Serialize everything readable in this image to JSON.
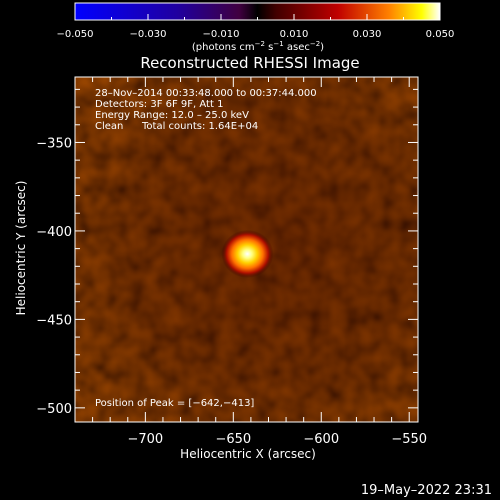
{
  "chart_data": {
    "type": "heatmap",
    "title": "Reconstructed RHESSI Image",
    "xlabel": "Heliocentric X (arcsec)",
    "ylabel": "Heliocentric Y (arcsec)",
    "xlim": [
      -740,
      -545
    ],
    "ylim": [
      -508,
      -313
    ],
    "x_ticks": [
      -700,
      -650,
      -600,
      -550
    ],
    "x_tick_labels": [
      "−700",
      "−650",
      "−600",
      "−550"
    ],
    "y_ticks": [
      -350,
      -400,
      -450,
      -500
    ],
    "y_tick_labels": [
      "−350",
      "−400",
      "−450",
      "−500"
    ],
    "colorbar": {
      "range": [
        -0.05,
        0.05
      ],
      "ticks": [
        -0.05,
        -0.03,
        -0.01,
        0.01,
        0.03,
        0.05
      ],
      "tick_labels": [
        "−0.050",
        "−0.030",
        "−0.010",
        "0.010",
        "0.030",
        "0.050"
      ],
      "units_prefix": "(photons cm",
      "units_exp1": "−2",
      "units_mid": " s",
      "units_exp2": "−1",
      "units_mid2": " asec",
      "units_exp3": "−2",
      "units_suffix": ")"
    },
    "annotations": {
      "time_range": "28–Nov–2014 00:33:48.000 to 00:37:44.000",
      "detectors": "Detectors: 3F 6F 9F, Att 1",
      "energy": "Energy Range: 12.0 – 25.0 keV",
      "clean": "Clean",
      "counts": "Total counts: 1.64E+04",
      "peak": "Position of Peak = [−642,−413]"
    },
    "source_peak": {
      "x": -642,
      "y": -413
    }
  },
  "footer": {
    "timestamp": "19–May–2022 23:31"
  }
}
